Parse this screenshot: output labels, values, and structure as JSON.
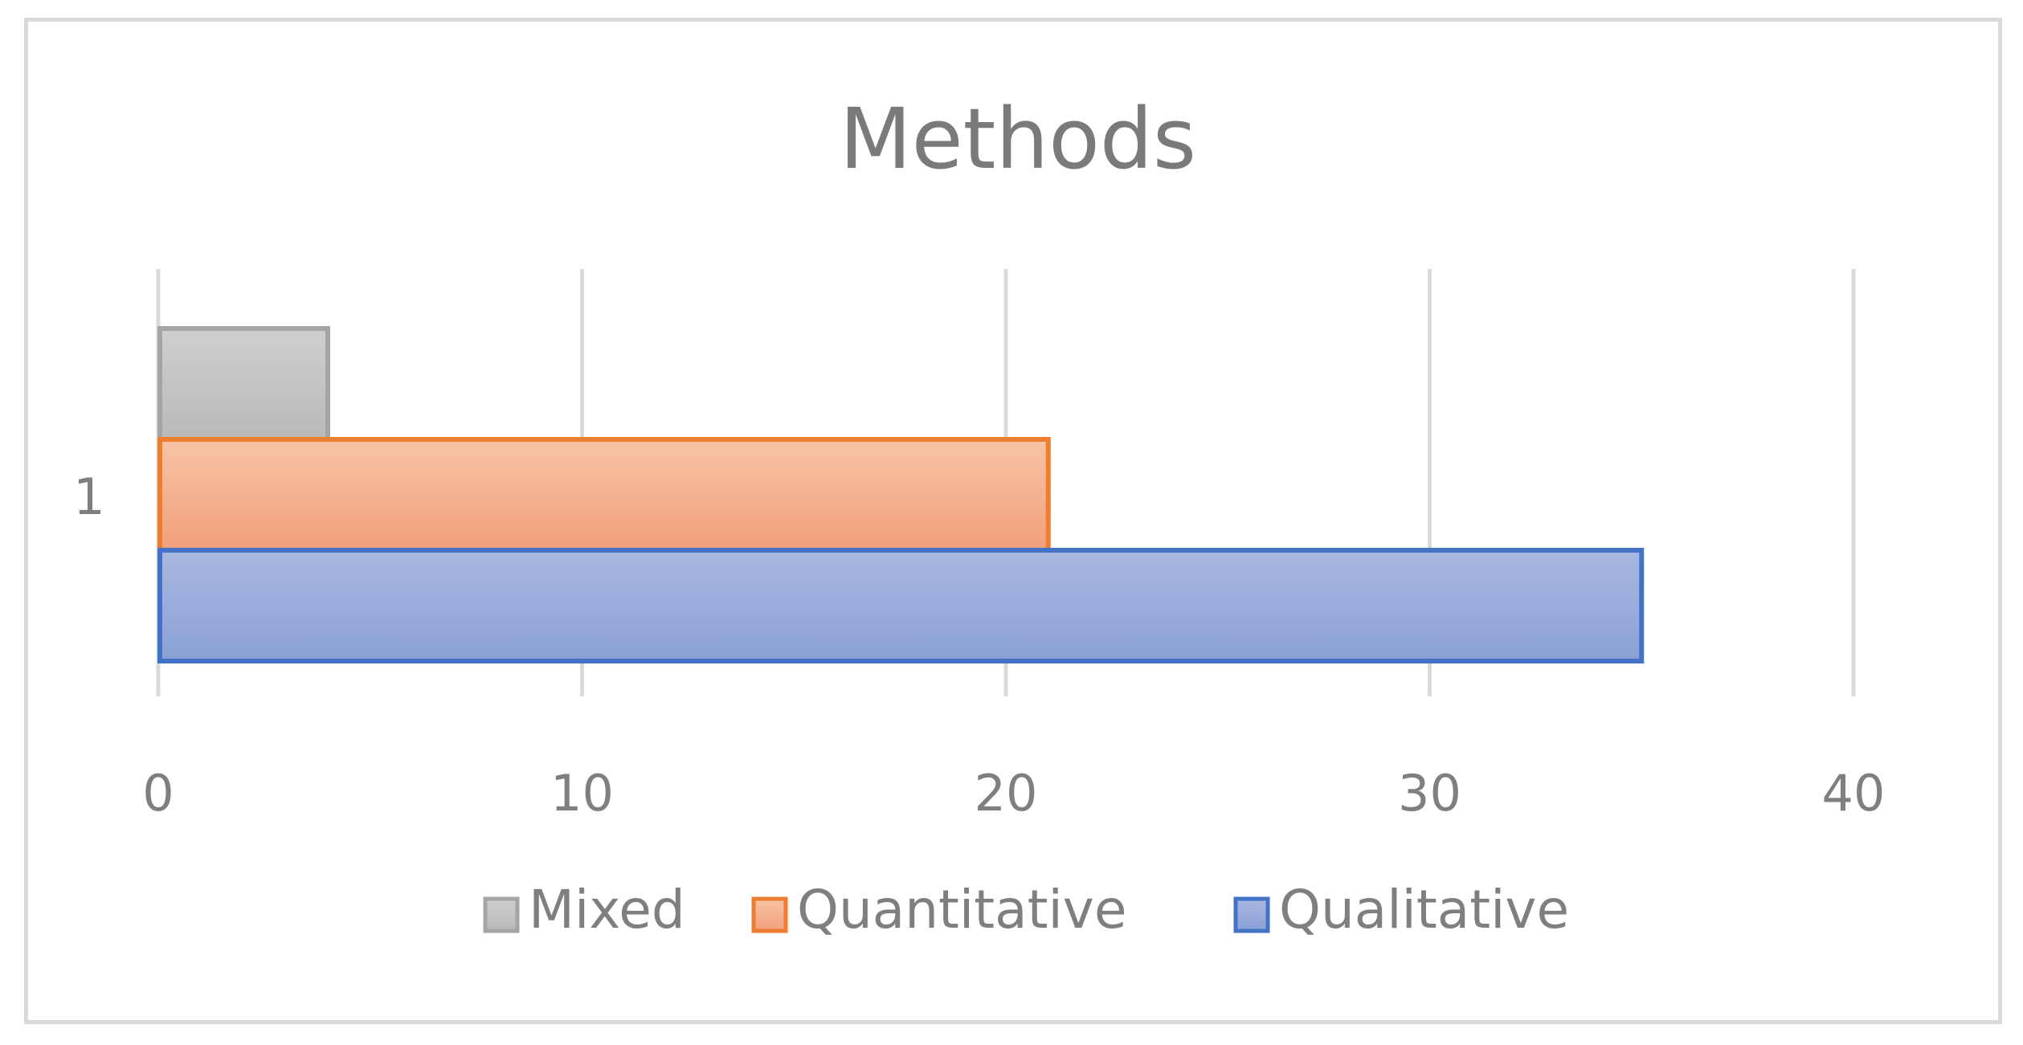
{
  "chart_data": {
    "type": "bar",
    "orientation": "horizontal",
    "title": "Methods",
    "categories": [
      "1"
    ],
    "series": [
      {
        "name": "Mixed",
        "values": [
          4
        ],
        "fill_top": "#cfcfcf",
        "fill_bottom": "#b9b9b9",
        "stroke": "#a5a5a5"
      },
      {
        "name": "Quantitative",
        "values": [
          21
        ],
        "fill_top": "#f7c3a6",
        "fill_bottom": "#f2a07a",
        "stroke": "#ed7d31"
      },
      {
        "name": "Qualitative",
        "values": [
          35
        ],
        "fill_top": "#a9b8e0",
        "fill_bottom": "#8aa0d6",
        "stroke": "#4472c4"
      }
    ],
    "x_ticks": [
      "0",
      "10",
      "20",
      "30",
      "40"
    ],
    "xlim": [
      0,
      40
    ],
    "grid": "vertical",
    "legend_position": "bottom"
  }
}
